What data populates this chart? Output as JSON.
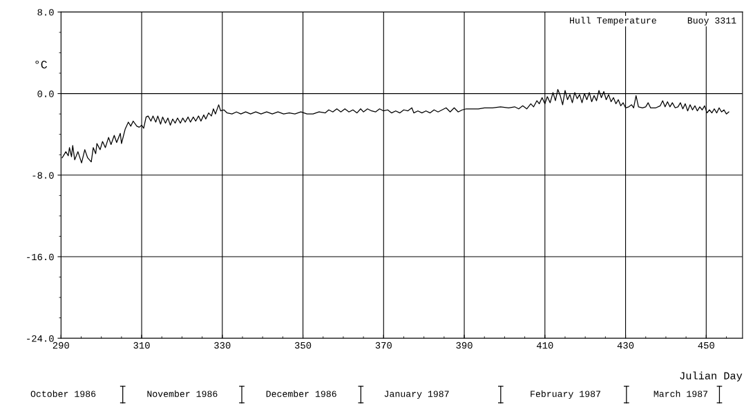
{
  "chart_data": {
    "type": "line",
    "xlabel": "Julian Day",
    "ylabel": "°C",
    "annotations": [
      "Hull Temperature",
      "Buoy 3311",
      "October 1986",
      "November 1986",
      "December 1986",
      "January 1987",
      "February 1987",
      "March 1987"
    ],
    "xlim": [
      290,
      459
    ],
    "xticks": [
      290,
      310,
      330,
      350,
      370,
      390,
      410,
      430,
      450
    ],
    "ylim": [
      -24,
      8
    ],
    "yticks": [
      {
        "value": -24,
        "label": "-24.0"
      },
      {
        "value": -16,
        "label": "-16.0"
      },
      {
        "value": -8,
        "label": "-8.0"
      },
      {
        "value": 0,
        "label": "0.0"
      },
      {
        "value": 8,
        "label": "8.0"
      }
    ],
    "grid": true,
    "legend": false,
    "marker": "none",
    "line_style": "solid",
    "series": [
      {
        "color": "#000000",
        "x": [
          290.3,
          291.2,
          291.8,
          292.1,
          292.6,
          292.9,
          293.4,
          294.2,
          295.1,
          295.9,
          296.6,
          297.5,
          298.0,
          298.6,
          298.9,
          299.7,
          300.3,
          301.0,
          301.8,
          302.4,
          303.2,
          303.8,
          304.7,
          305.0,
          305.9,
          306.7,
          307.3,
          307.9,
          308.8,
          309.4,
          310.0,
          310.5,
          311.1,
          311.6,
          312.3,
          312.8,
          313.5,
          314.0,
          314.7,
          315.2,
          315.9,
          316.5,
          317.1,
          317.7,
          318.3,
          318.9,
          319.6,
          320.2,
          320.8,
          321.5,
          322.1,
          322.8,
          323.4,
          324.1,
          324.7,
          325.4,
          325.9,
          326.6,
          327.3,
          327.8,
          328.3,
          329.1,
          329.6,
          330.4,
          331.2,
          332.4,
          333.5,
          334.6,
          335.8,
          337.0,
          338.3,
          339.6,
          341.0,
          342.4,
          343.8,
          345.2,
          346.6,
          348.0,
          349.5,
          351.0,
          352.5,
          354.0,
          355.5,
          356.4,
          357.4,
          358.4,
          359.4,
          360.4,
          361.4,
          362.4,
          363.4,
          364.3,
          365.0,
          366.0,
          367.0,
          368.0,
          369.0,
          370.0,
          371.0,
          372.0,
          373.0,
          374.0,
          375.0,
          376.0,
          377.0,
          377.5,
          378.5,
          379.5,
          380.5,
          381.5,
          382.5,
          383.5,
          384.5,
          385.5,
          386.5,
          387.5,
          388.5,
          389.5,
          390.5,
          392.0,
          393.5,
          395.0,
          397.0,
          399.0,
          401.0,
          402.5,
          403.5,
          404.5,
          405.5,
          406.5,
          407.2,
          408.0,
          408.6,
          409.3,
          410.0,
          410.6,
          411.3,
          412.0,
          412.6,
          413.2,
          413.8,
          414.4,
          415.0,
          415.6,
          416.2,
          416.8,
          417.4,
          418.0,
          418.6,
          419.2,
          419.8,
          420.4,
          421.0,
          421.6,
          422.2,
          422.8,
          423.4,
          424.0,
          424.6,
          425.2,
          425.8,
          426.4,
          427.0,
          427.6,
          428.2,
          428.8,
          429.4,
          430.0,
          430.8,
          431.5,
          432.0,
          432.6,
          433.2,
          434.2,
          435.0,
          435.6,
          436.2,
          437.5,
          438.6,
          439.2,
          439.8,
          440.4,
          441.0,
          441.6,
          442.3,
          443.0,
          443.6,
          444.2,
          444.8,
          445.4,
          446.0,
          446.6,
          447.2,
          447.8,
          448.4,
          449.0,
          449.6,
          450.2,
          450.8,
          451.4,
          452.0,
          452.6,
          453.2,
          453.8,
          454.4,
          455.0,
          455.6
        ],
        "values": [
          -6.3,
          -5.7,
          -6.1,
          -5.3,
          -6.2,
          -5.1,
          -6.5,
          -5.7,
          -6.8,
          -5.5,
          -6.3,
          -6.7,
          -5.3,
          -5.9,
          -4.9,
          -5.5,
          -4.7,
          -5.3,
          -4.3,
          -5.0,
          -4.1,
          -4.8,
          -3.9,
          -4.9,
          -3.5,
          -2.8,
          -3.2,
          -2.7,
          -3.2,
          -3.3,
          -3.1,
          -3.4,
          -2.3,
          -2.2,
          -2.7,
          -2.2,
          -2.8,
          -2.2,
          -3.0,
          -2.3,
          -2.9,
          -2.4,
          -3.1,
          -2.5,
          -2.9,
          -2.4,
          -2.9,
          -2.4,
          -2.8,
          -2.3,
          -2.8,
          -2.3,
          -2.7,
          -2.2,
          -2.7,
          -2.1,
          -2.5,
          -1.9,
          -2.2,
          -1.5,
          -2.0,
          -1.1,
          -1.7,
          -1.6,
          -1.9,
          -2.0,
          -1.8,
          -2.0,
          -1.8,
          -2.0,
          -1.8,
          -2.0,
          -1.8,
          -2.0,
          -1.8,
          -2.0,
          -1.9,
          -2.0,
          -1.8,
          -2.0,
          -2.0,
          -1.8,
          -1.9,
          -1.6,
          -1.8,
          -1.5,
          -1.8,
          -1.5,
          -1.8,
          -1.6,
          -1.9,
          -1.5,
          -1.8,
          -1.5,
          -1.7,
          -1.8,
          -1.5,
          -1.7,
          -1.6,
          -1.9,
          -1.7,
          -1.9,
          -1.6,
          -1.7,
          -1.4,
          -1.9,
          -1.7,
          -1.9,
          -1.7,
          -1.9,
          -1.6,
          -1.8,
          -1.6,
          -1.4,
          -1.8,
          -1.4,
          -1.8,
          -1.6,
          -1.5,
          -1.5,
          -1.5,
          -1.4,
          -1.4,
          -1.3,
          -1.4,
          -1.3,
          -1.5,
          -1.2,
          -1.5,
          -1.0,
          -1.3,
          -0.7,
          -1.0,
          -0.4,
          -1.0,
          -0.3,
          -0.9,
          0.1,
          -0.7,
          0.4,
          -0.2,
          -1.1,
          0.3,
          -0.6,
          -0.1,
          -0.9,
          0.1,
          -0.5,
          -0.1,
          -0.9,
          0.0,
          -0.6,
          0.1,
          -0.8,
          -0.2,
          -0.7,
          0.3,
          -0.4,
          0.2,
          -0.6,
          -0.1,
          -0.8,
          -0.4,
          -1.0,
          -0.6,
          -1.2,
          -0.9,
          -1.4,
          -1.3,
          -1.1,
          -1.4,
          -0.2,
          -1.3,
          -1.4,
          -1.3,
          -0.9,
          -1.4,
          -1.4,
          -1.2,
          -0.7,
          -1.3,
          -0.8,
          -1.3,
          -0.9,
          -1.4,
          -1.3,
          -0.9,
          -1.5,
          -1.0,
          -1.7,
          -1.1,
          -1.6,
          -1.2,
          -1.7,
          -1.3,
          -1.6,
          -1.2,
          -1.9,
          -1.6,
          -1.9,
          -1.5,
          -1.9,
          -1.4,
          -1.8,
          -1.6,
          -2.0,
          -1.8
        ]
      }
    ]
  }
}
